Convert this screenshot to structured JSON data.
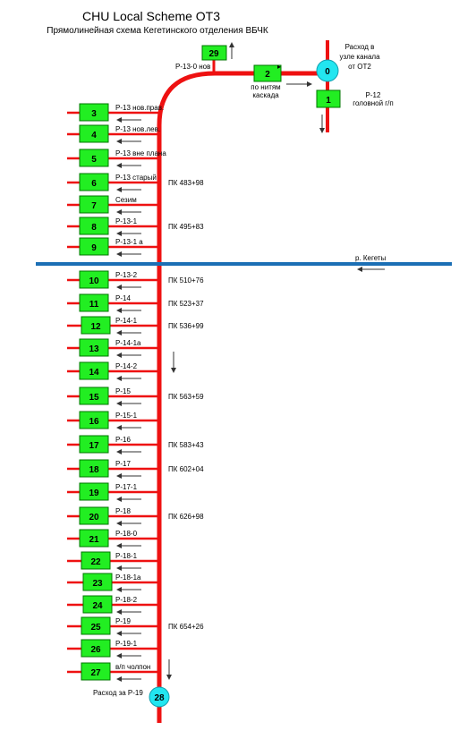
{
  "title": "CHU Local Scheme OT3",
  "subtitle": "Прямолинейная схема Кегетинского отделения ВБЧК",
  "colors": {
    "canal": "#ee1111",
    "node_fill": "#22ee22",
    "node_border": "#007700",
    "circle_fill": "#22e6f0",
    "river": "#1b6fb5",
    "arrow": "#333333"
  },
  "top_section": {
    "node_29": "29",
    "node_29_label": "Р-13-0 нов",
    "node_2": "2",
    "node_2_label_line1": "по нитям",
    "node_2_label_line2": "каскада",
    "circle_0": "0",
    "circle_0_label_line1": "Расход в",
    "circle_0_label_line2": "узле канала",
    "circle_0_label_line3": "от ОТ2",
    "node_1": "1",
    "node_1_label_line1": "Р-12",
    "node_1_label_line2": "головной г/п"
  },
  "river": {
    "label": "р. Кегеты"
  },
  "outlets": [
    {
      "id": "3",
      "label": "Р-13 нов.прав.",
      "pk": ""
    },
    {
      "id": "4",
      "label": "Р-13 нов.лев.",
      "pk": ""
    },
    {
      "id": "5",
      "label": "Р-13 вне плана",
      "pk": ""
    },
    {
      "id": "6",
      "label": "Р-13 старый",
      "pk": "ПК 483+98"
    },
    {
      "id": "7",
      "label": "Сезим",
      "pk": ""
    },
    {
      "id": "8",
      "label": "Р-13-1",
      "pk": "ПК 495+83"
    },
    {
      "id": "9",
      "label": "Р-13-1 а",
      "pk": ""
    },
    {
      "id": "10",
      "label": "Р-13-2",
      "pk": "ПК 510+76"
    },
    {
      "id": "11",
      "label": "Р-14",
      "pk": "ПК 523+37"
    },
    {
      "id": "12",
      "label": "Р-14-1",
      "pk": "ПК 536+99"
    },
    {
      "id": "13",
      "label": "Р-14-1а",
      "pk": ""
    },
    {
      "id": "14",
      "label": "Р-14-2",
      "pk": ""
    },
    {
      "id": "15",
      "label": "Р-15",
      "pk": "ПК 563+59"
    },
    {
      "id": "16",
      "label": "Р-15-1",
      "pk": ""
    },
    {
      "id": "17",
      "label": "Р-16",
      "pk": "ПК 583+43"
    },
    {
      "id": "18",
      "label": "Р-17",
      "pk": "ПК 602+04"
    },
    {
      "id": "19",
      "label": "Р-17-1",
      "pk": ""
    },
    {
      "id": "20",
      "label": "Р-18",
      "pk": "ПК 626+98"
    },
    {
      "id": "21",
      "label": "Р-18-0",
      "pk": ""
    },
    {
      "id": "22",
      "label": "Р-18-1",
      "pk": ""
    },
    {
      "id": "23",
      "label": "Р-18-1а",
      "pk": ""
    },
    {
      "id": "24",
      "label": "Р-18-2",
      "pk": ""
    },
    {
      "id": "25",
      "label": "Р-19",
      "pk": "ПК 654+26"
    },
    {
      "id": "26",
      "label": "Р-19-1",
      "pk": ""
    },
    {
      "id": "27",
      "label": "в/п чолпон",
      "pk": ""
    }
  ],
  "bottom": {
    "circle_28": "28",
    "circle_28_label": "Расход за Р-19"
  }
}
